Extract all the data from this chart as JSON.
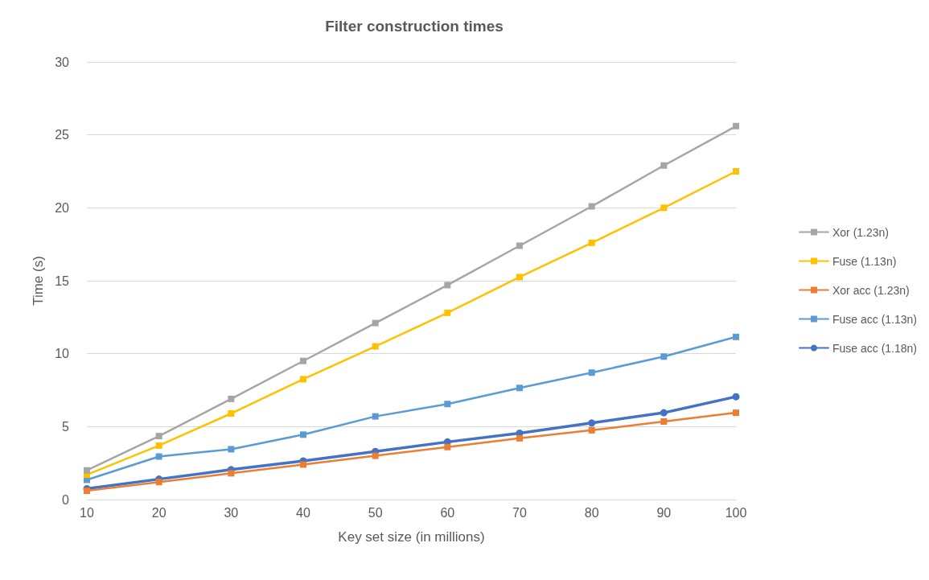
{
  "chart_data": {
    "type": "line",
    "title": "Filter construction times",
    "xlabel": "Key set size (in millions)",
    "ylabel": "Time (s)",
    "x": [
      10,
      20,
      30,
      40,
      50,
      60,
      70,
      80,
      90,
      100
    ],
    "series": [
      {
        "name": "Xor (1.23n)",
        "color": "#a5a5a5",
        "values": [
          2.0,
          4.35,
          6.9,
          9.5,
          12.1,
          14.7,
          17.4,
          20.1,
          22.9,
          25.6
        ]
      },
      {
        "name": "Fuse (1.13n)",
        "color": "#ffc000",
        "values": [
          1.7,
          3.7,
          5.9,
          8.25,
          10.5,
          12.8,
          15.25,
          17.6,
          20.0,
          22.5
        ]
      },
      {
        "name": "Xor acc (1.23n)",
        "color": "#ed7d31",
        "values": [
          0.6,
          1.2,
          1.8,
          2.4,
          3.0,
          3.6,
          4.2,
          4.75,
          5.35,
          5.95
        ]
      },
      {
        "name": "Fuse acc (1.13n)",
        "color": "#5b9bd5",
        "values": [
          1.35,
          2.95,
          3.45,
          4.45,
          5.7,
          6.55,
          7.65,
          8.7,
          9.8,
          11.15
        ]
      },
      {
        "name": "Fuse acc (1.18n)",
        "color": "#4472c4",
        "marker": "circle",
        "values": [
          0.75,
          1.4,
          2.05,
          2.65,
          3.3,
          3.95,
          4.55,
          5.25,
          5.95,
          7.05
        ]
      }
    ],
    "xlim": [
      10,
      100
    ],
    "xticks": [
      10,
      20,
      30,
      40,
      50,
      60,
      70,
      80,
      90,
      100
    ],
    "ylim": [
      0,
      30
    ],
    "yticks": [
      0,
      5,
      10,
      15,
      20,
      25,
      30
    ],
    "grid": "y",
    "legend": "right",
    "marker": "square",
    "line_style": "solid"
  }
}
